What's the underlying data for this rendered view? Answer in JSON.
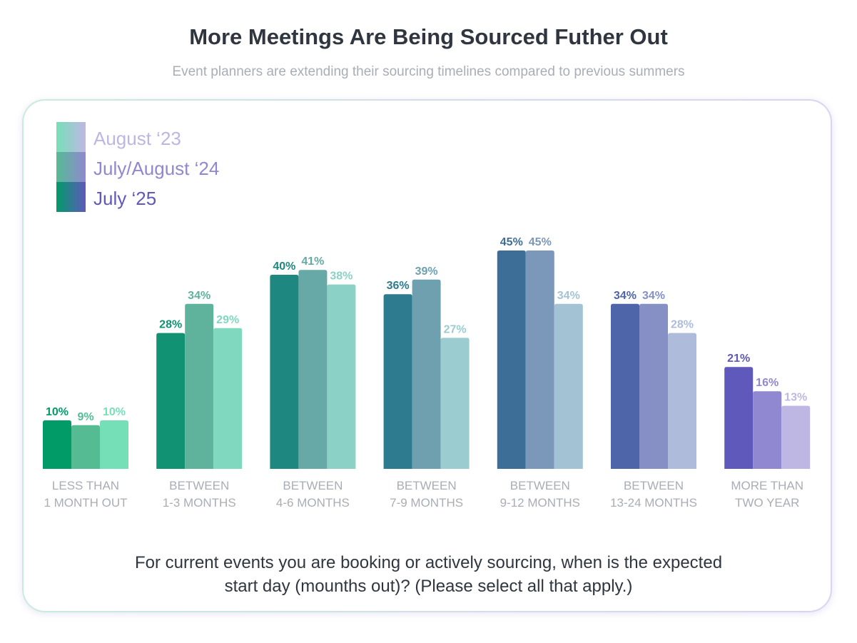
{
  "title": "More Meetings Are Being Sourced Futher Out",
  "subtitle": "Event planners are extending their sourcing timelines compared to previous summers",
  "question_line1": "For current events you are booking or actively sourcing, when is the expected",
  "question_line2": "start day (mounths out)? (Please select all that apply.)",
  "chart_data": {
    "type": "bar",
    "title": "More Meetings Are Being Sourced Futher Out",
    "xlabel": "",
    "ylabel": "",
    "ylim": [
      0,
      45
    ],
    "grid": false,
    "legend_position": "top-left",
    "categories": [
      [
        "LESS THAN",
        "1 MONTH OUT"
      ],
      [
        "BETWEEN",
        "1-3 MONTHS"
      ],
      [
        "BETWEEN",
        "4-6 MONTHS"
      ],
      [
        "BETWEEN",
        "7-9 MONTHS"
      ],
      [
        "BETWEEN",
        "9-12 MONTHS"
      ],
      [
        "BETWEEN",
        "13-24 MONTHS"
      ],
      [
        "MORE THAN",
        "TWO YEAR"
      ]
    ],
    "series": [
      {
        "name": "July ‘25",
        "legend_color": "#5f59bb",
        "values": [
          10,
          28,
          40,
          36,
          45,
          34,
          21
        ],
        "colors": [
          "#019b68",
          "#119272",
          "#1e8780",
          "#2e7a8e",
          "#3d6e98",
          "#4e65a9",
          "#5f59bb"
        ]
      },
      {
        "name": "July/August ‘24",
        "legend_color": "#8f88d0",
        "values": [
          9,
          34,
          41,
          39,
          45,
          34,
          16
        ],
        "colors": [
          "#55bb93",
          "#5fb39d",
          "#67a9a7",
          "#6fa0b0",
          "#7b98bb",
          "#8690c5",
          "#9088d0"
        ]
      },
      {
        "name": "August ‘23",
        "legend_color": "#bdb6e2",
        "values": [
          10,
          29,
          38,
          27,
          34,
          28,
          13
        ],
        "colors": [
          "#75e0b7",
          "#80d9bf",
          "#8bd1c6",
          "#9bccd0",
          "#a3c3d5",
          "#aebbdb",
          "#bfb7e3"
        ]
      }
    ],
    "value_suffix": "%"
  }
}
